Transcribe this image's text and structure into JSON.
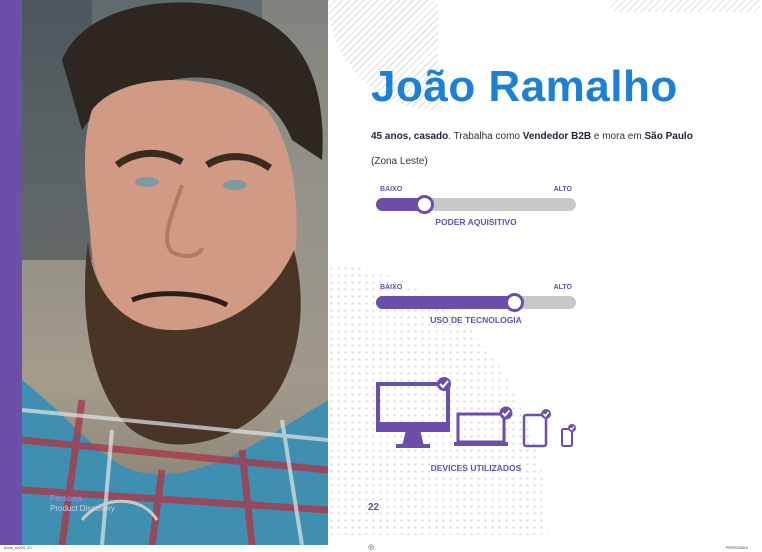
{
  "persona": {
    "name": "João Ramalho",
    "bio": {
      "age_status": "45 anos, casado",
      "text1": ". Trabalha como ",
      "job": "Vendedor B2B",
      "text2": " e mora em ",
      "city": "São Paulo",
      "text3": " (Zona Leste)"
    }
  },
  "photo_caption": {
    "title": "Persona",
    "subtitle": "Product Discovery"
  },
  "sliders": [
    {
      "low": "BAIXO",
      "high": "ALTO",
      "label": "PODER AQUISITIVO",
      "level": 0.24
    },
    {
      "low": "BAIXO",
      "high": "ALTO",
      "label": "USO DE TECNOLOGIA",
      "level": 0.69
    }
  ],
  "devices": {
    "label": "DEVICES UTILIZADOS",
    "items": [
      {
        "name": "desktop-icon",
        "checked": true
      },
      {
        "name": "laptop-icon",
        "checked": true
      },
      {
        "name": "tablet-icon",
        "checked": true
      },
      {
        "name": "smartphone-icon",
        "checked": true
      }
    ]
  },
  "page_number": "22",
  "footer": {
    "left": "book_rev04_22",
    "middle": "◎",
    "right": "PERSONAS"
  },
  "colors": {
    "accent": "#6b4fa8",
    "name_blue": "#1d7fd6",
    "track": "#c8c8c8"
  }
}
